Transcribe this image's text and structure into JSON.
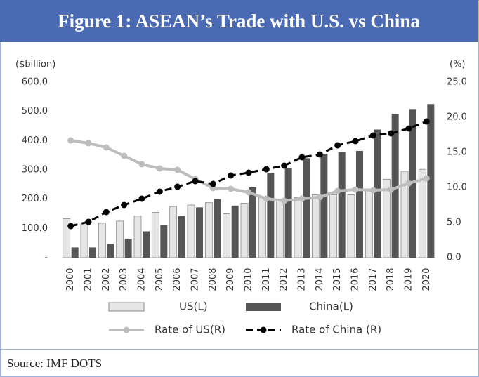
{
  "chart_data": {
    "type": "bar",
    "title": "Figure 1: ASEAN’s Trade with U.S. vs China",
    "y_label": "($billion)",
    "y2_label": "(%)",
    "categories": [
      "2000",
      "2001",
      "2002",
      "2003",
      "2004",
      "2005",
      "2006",
      "2007",
      "2008",
      "2009",
      "2010",
      "2011",
      "2012",
      "2013",
      "2014",
      "2015",
      "2016",
      "2017",
      "2018",
      "2019",
      "2020"
    ],
    "series": [
      {
        "name": "US(L)",
        "type": "bar",
        "color": "#e6e6e6",
        "values": [
          133,
          118,
          118,
          125,
          142,
          155,
          175,
          180,
          188,
          150,
          186,
          205,
          200,
          205,
          215,
          215,
          215,
          235,
          268,
          295,
          302
        ]
      },
      {
        "name": "China(L)",
        "type": "bar",
        "color": "#555555",
        "values": [
          35,
          35,
          48,
          65,
          90,
          112,
          142,
          172,
          200,
          178,
          240,
          290,
          305,
          340,
          355,
          362,
          365,
          438,
          492,
          508,
          525
        ]
      },
      {
        "name": "Rate of US(R)",
        "type": "line",
        "axis": "y2",
        "color": "#bdbdbd",
        "values": [
          16.7,
          16.3,
          15.7,
          14.5,
          13.3,
          12.7,
          12.5,
          11.2,
          9.9,
          9.8,
          9.3,
          8.4,
          8.1,
          8.4,
          8.6,
          9.5,
          9.7,
          9.6,
          9.7,
          10.6,
          11.3
        ]
      },
      {
        "name": "Rate of China (R)",
        "type": "line",
        "axis": "y2",
        "dashed": true,
        "color": "#000000",
        "values": [
          4.5,
          5.1,
          6.5,
          7.5,
          8.4,
          9.4,
          10.1,
          10.9,
          10.5,
          11.7,
          12.1,
          12.6,
          13.1,
          14.3,
          14.7,
          16.0,
          16.6,
          17.4,
          17.7,
          18.4,
          19.4
        ]
      }
    ],
    "ylim": [
      0,
      600
    ],
    "yticks": [
      {
        "value": 0,
        "label": "-"
      },
      {
        "value": 100,
        "label": "100.0"
      },
      {
        "value": 200,
        "label": "200.0"
      },
      {
        "value": 300,
        "label": "300.0"
      },
      {
        "value": 400,
        "label": "400.0"
      },
      {
        "value": 500,
        "label": "500.0"
      },
      {
        "value": 600,
        "label": "600.0"
      }
    ],
    "y2lim": [
      0,
      25
    ],
    "y2ticks": [
      {
        "value": 0,
        "label": "0.0"
      },
      {
        "value": 5,
        "label": "5.0"
      },
      {
        "value": 10,
        "label": "10.0"
      },
      {
        "value": 15,
        "label": "15.0"
      },
      {
        "value": 20,
        "label": "20.0"
      },
      {
        "value": 25,
        "label": "25.0"
      }
    ],
    "legend": "bottom"
  },
  "source": "Source: IMF DOTS"
}
